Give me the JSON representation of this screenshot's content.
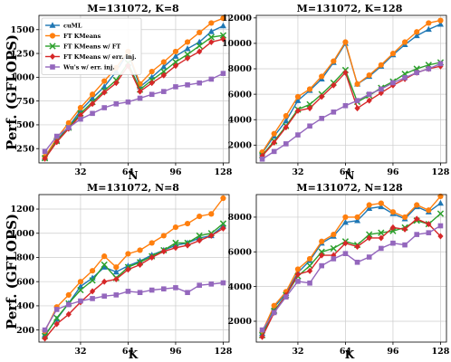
{
  "figure": {
    "ylabel_top": "Perf. (GFLOPS)",
    "ylabel_bottom": "Perf. (GFLOPS)"
  },
  "colors": {
    "cuML": "#1f77b4",
    "FT KMeans": "#ff7f0e",
    "FT KMeans w/ FT": "#2ca02c",
    "FT KMeans w/ err. inj.": "#d62728",
    "Wu's w/ err. inj.": "#9467bd"
  },
  "legend": [
    "cuML",
    "FT KMeans",
    "FT KMeans w/ FT",
    "FT KMeans w/ err. inj.",
    "Wu's w/ err. inj."
  ],
  "chart_data": [
    {
      "type": "line",
      "title": "M=131072, K=8",
      "xlabel": "N",
      "ylabel": "Perf. (GFLOPS)",
      "xlim": [
        4,
        132
      ],
      "ylim": [
        100,
        1650
      ],
      "xticks": [
        32,
        64,
        96,
        128
      ],
      "yticks": [
        250,
        500,
        750,
        1000,
        1250,
        1500
      ],
      "legend_position": "top-left",
      "grid": true,
      "x": [
        8,
        16,
        24,
        32,
        40,
        48,
        56,
        64,
        72,
        80,
        88,
        96,
        104,
        112,
        120,
        128
      ],
      "series": [
        {
          "name": "cuML",
          "values": [
            160,
            340,
            480,
            650,
            780,
            900,
            1060,
            1260,
            900,
            1000,
            1110,
            1220,
            1300,
            1370,
            1480,
            1540
          ]
        },
        {
          "name": "FT KMeans",
          "values": [
            165,
            360,
            520,
            680,
            820,
            960,
            1100,
            1270,
            930,
            1060,
            1160,
            1270,
            1370,
            1470,
            1570,
            1620
          ]
        },
        {
          "name": "FT KMeans w/ FT",
          "values": [
            150,
            330,
            470,
            620,
            740,
            860,
            970,
            1150,
            870,
            970,
            1060,
            1160,
            1240,
            1330,
            1420,
            1440
          ]
        },
        {
          "name": "FT KMeans w/ err. inj.",
          "values": [
            145,
            320,
            460,
            600,
            720,
            840,
            940,
            1120,
            850,
            940,
            1020,
            1120,
            1200,
            1270,
            1370,
            1400
          ]
        },
        {
          "name": "Wu's w/ err. inj.",
          "values": [
            220,
            380,
            470,
            560,
            620,
            680,
            720,
            740,
            780,
            820,
            850,
            900,
            920,
            940,
            980,
            1040
          ]
        }
      ]
    },
    {
      "type": "line",
      "title": "M=131072, K=128",
      "xlabel": "N",
      "ylabel": "",
      "xlim": [
        4,
        132
      ],
      "ylim": [
        600,
        12200
      ],
      "xticks": [
        32,
        64,
        96,
        128
      ],
      "yticks": [
        2000,
        4000,
        6000,
        8000,
        10000,
        12000
      ],
      "legend_position": "none",
      "grid": true,
      "x": [
        8,
        16,
        24,
        32,
        40,
        48,
        56,
        64,
        72,
        80,
        88,
        96,
        104,
        112,
        120,
        128
      ],
      "series": [
        {
          "name": "cuML",
          "values": [
            1400,
            2700,
            3900,
            5500,
            6300,
            7200,
            8500,
            10000,
            6800,
            7400,
            8200,
            9100,
            9900,
            10600,
            11100,
            11500
          ]
        },
        {
          "name": "FT KMeans",
          "values": [
            1450,
            2900,
            4300,
            5800,
            6400,
            7400,
            8600,
            10100,
            6800,
            7500,
            8300,
            9200,
            10100,
            10900,
            11600,
            11800
          ]
        },
        {
          "name": "FT KMeans w/ FT",
          "values": [
            1200,
            2300,
            3500,
            4800,
            5200,
            6000,
            6900,
            7900,
            5400,
            5900,
            6500,
            7000,
            7600,
            8000,
            8300,
            8500
          ]
        },
        {
          "name": "FT KMeans w/ err. inj.",
          "values": [
            1150,
            2200,
            3400,
            4700,
            4900,
            5800,
            6700,
            7700,
            4900,
            5500,
            6100,
            6700,
            7200,
            7700,
            8000,
            8200
          ]
        },
        {
          "name": "Wu's w/ err. inj.",
          "values": [
            900,
            1500,
            2100,
            2800,
            3500,
            4100,
            4600,
            5100,
            5500,
            6000,
            6400,
            6900,
            7300,
            7700,
            8000,
            8400
          ]
        }
      ]
    },
    {
      "type": "line",
      "title": "M=131072, N=8",
      "xlabel": "K",
      "ylabel": "Perf. (GFLOPS)",
      "xlim": [
        4,
        132
      ],
      "ylim": [
        100,
        1320
      ],
      "xticks": [
        32,
        64,
        96,
        128
      ],
      "yticks": [
        200,
        400,
        600,
        800,
        1000,
        1200
      ],
      "legend_position": "none",
      "grid": true,
      "x": [
        8,
        16,
        24,
        32,
        40,
        48,
        56,
        64,
        72,
        80,
        88,
        96,
        104,
        112,
        120,
        128
      ],
      "series": [
        {
          "name": "cuML",
          "values": [
            160,
            290,
            420,
            560,
            630,
            720,
            680,
            730,
            770,
            820,
            860,
            900,
            920,
            960,
            980,
            1060
          ]
        },
        {
          "name": "FT KMeans",
          "values": [
            190,
            390,
            490,
            600,
            690,
            810,
            720,
            830,
            860,
            920,
            980,
            1050,
            1080,
            1140,
            1160,
            1290
          ]
        },
        {
          "name": "FT KMeans w/ FT",
          "values": [
            150,
            300,
            420,
            530,
            610,
            740,
            630,
            720,
            760,
            810,
            860,
            920,
            920,
            980,
            1000,
            1080
          ]
        },
        {
          "name": "FT KMeans w/ err. inj.",
          "values": [
            130,
            250,
            330,
            430,
            520,
            600,
            620,
            700,
            740,
            800,
            850,
            880,
            900,
            940,
            980,
            1040
          ]
        },
        {
          "name": "Wu's w/ err. inj.",
          "values": [
            200,
            370,
            410,
            440,
            460,
            480,
            490,
            520,
            510,
            530,
            540,
            550,
            510,
            570,
            580,
            590
          ]
        }
      ]
    },
    {
      "type": "line",
      "title": "M=131072, N=128",
      "xlabel": "K",
      "ylabel": "",
      "xlim": [
        4,
        132
      ],
      "ylim": [
        800,
        9300
      ],
      "xticks": [
        32,
        64,
        96,
        128
      ],
      "yticks": [
        2000,
        4000,
        6000,
        8000
      ],
      "legend_position": "none",
      "grid": true,
      "x": [
        8,
        16,
        24,
        32,
        40,
        48,
        56,
        64,
        72,
        80,
        88,
        96,
        104,
        112,
        120,
        128
      ],
      "series": [
        {
          "name": "cuML",
          "values": [
            1300,
            2800,
            3600,
            4800,
            5500,
            6500,
            6900,
            7700,
            7800,
            8500,
            8600,
            8200,
            7900,
            8600,
            8300,
            8800
          ]
        },
        {
          "name": "FT KMeans",
          "values": [
            1400,
            2900,
            3700,
            5000,
            5600,
            6600,
            7000,
            8000,
            8000,
            8700,
            8800,
            8300,
            8000,
            8700,
            8400,
            9200
          ]
        },
        {
          "name": "FT KMeans w/ FT",
          "values": [
            1200,
            2600,
            3500,
            4600,
            5200,
            6000,
            6200,
            6600,
            6400,
            7000,
            7100,
            7200,
            7400,
            7800,
            7600,
            8200
          ]
        },
        {
          "name": "FT KMeans w/ err. inj.",
          "values": [
            1100,
            2500,
            3500,
            4700,
            4900,
            5800,
            5800,
            6500,
            6300,
            6800,
            6800,
            7400,
            7300,
            7900,
            7600,
            6900
          ]
        },
        {
          "name": "Wu's w/ err. inj.",
          "values": [
            1500,
            2500,
            3400,
            4300,
            4200,
            5200,
            5600,
            5900,
            5400,
            5700,
            6200,
            6500,
            6400,
            7000,
            7100,
            7500
          ]
        }
      ]
    }
  ]
}
